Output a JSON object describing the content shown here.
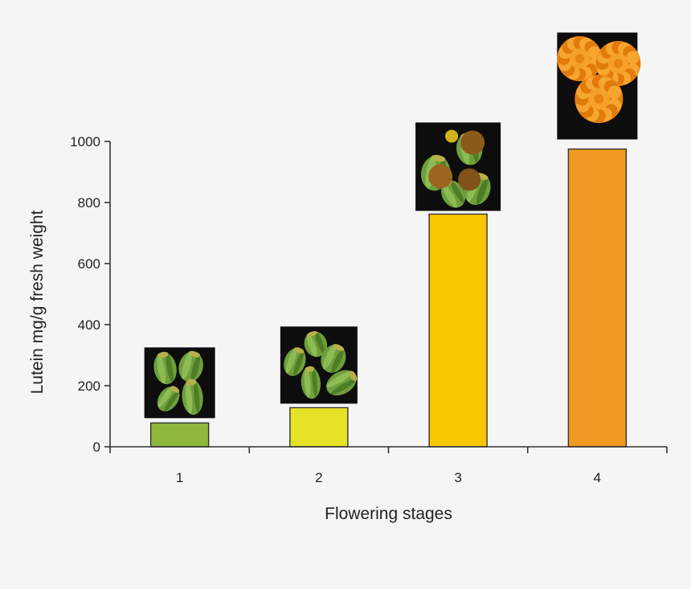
{
  "chart_data": {
    "type": "bar",
    "title": "",
    "xlabel": "Flowering stages",
    "ylabel": "Lutein mg/g fresh weight",
    "categories": [
      "1",
      "2",
      "3",
      "4"
    ],
    "values": [
      78,
      128,
      762,
      975
    ],
    "ylim": [
      0,
      1000
    ],
    "yticks": [
      0,
      200,
      400,
      600,
      800,
      1000
    ],
    "bar_colors": [
      "#8db83b",
      "#e6e227",
      "#f7c700",
      "#f09a23"
    ],
    "grid": false,
    "legend": "none",
    "stage_photos": [
      {
        "stage": "1",
        "subject": "green flower buds"
      },
      {
        "stage": "2",
        "subject": "green flower buds"
      },
      {
        "stage": "3",
        "subject": "opening buds with orange petals"
      },
      {
        "stage": "4",
        "subject": "fully bloomed orange marigold flowers"
      }
    ]
  }
}
